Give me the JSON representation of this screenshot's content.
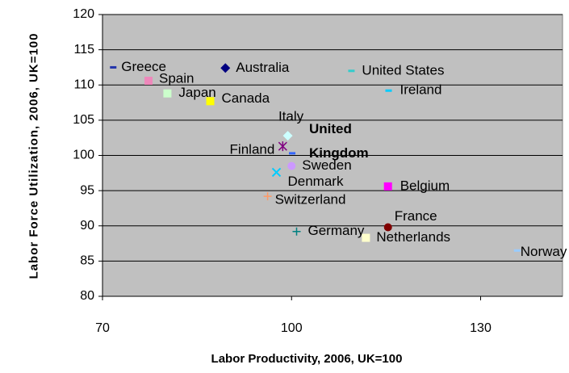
{
  "chart_data": {
    "type": "scatter",
    "x_label": "Labor Productivity, 2006, UK=100",
    "y_label": "Labor Force Utilization, 2006, UK=100",
    "xlim": [
      70,
      143
    ],
    "ylim": [
      80,
      120
    ],
    "xticks": [
      70,
      100,
      130
    ],
    "yticks": [
      80,
      85,
      90,
      95,
      100,
      105,
      110,
      115,
      120
    ],
    "grid": true,
    "points": [
      {
        "label": "Greece",
        "x": 71.7,
        "y": 112.5,
        "color": "#2233aa",
        "marker": "dash"
      },
      {
        "label": "Spain",
        "x": 77.3,
        "y": 110.6,
        "color": "#ee88bb",
        "marker": "square"
      },
      {
        "label": "Japan",
        "x": 80.3,
        "y": 108.8,
        "color": "#ccffcc",
        "marker": "square"
      },
      {
        "label": "Canada",
        "x": 87.1,
        "y": 107.7,
        "color": "#ffff00",
        "marker": "square"
      },
      {
        "label": "Australia",
        "x": 89.5,
        "y": 112.4,
        "color": "#000080",
        "marker": "diamond"
      },
      {
        "label": "United States",
        "x": 109.5,
        "y": 112.0,
        "color": "#33cccc",
        "marker": "dash"
      },
      {
        "label": "Ireland",
        "x": 115.4,
        "y": 109.2,
        "color": "#00ccff",
        "marker": "dash"
      },
      {
        "label": "Italy",
        "x": 99.4,
        "y": 102.8,
        "color": "#ccffff",
        "marker": "diamond"
      },
      {
        "label": "Finland",
        "x": 98.6,
        "y": 101.3,
        "color": "#800080",
        "marker": "star"
      },
      {
        "label": "United Kingdom",
        "x": 100.1,
        "y": 100.3,
        "color": "#3366ff",
        "marker": "dash"
      },
      {
        "label": "Sweden",
        "x": 100.0,
        "y": 98.5,
        "color": "#cc99ff",
        "marker": "circle"
      },
      {
        "label": "Denmark",
        "x": 97.6,
        "y": 97.6,
        "color": "#00ccff",
        "marker": "x"
      },
      {
        "label": "Belgium",
        "x": 115.3,
        "y": 95.6,
        "color": "#ff00ff",
        "marker": "square"
      },
      {
        "label": "Switzerland",
        "x": 96.2,
        "y": 94.2,
        "color": "#ff9966",
        "marker": "plus"
      },
      {
        "label": "Germany",
        "x": 100.8,
        "y": 89.2,
        "color": "#008080",
        "marker": "plus"
      },
      {
        "label": "France",
        "x": 115.3,
        "y": 89.8,
        "color": "#800000",
        "marker": "circle"
      },
      {
        "label": "Netherlands",
        "x": 111.8,
        "y": 88.3,
        "color": "#ffffcc",
        "marker": "square"
      },
      {
        "label": "Norway",
        "x": 135.8,
        "y": 86.5,
        "color": "#99ccff",
        "marker": "dash"
      }
    ]
  }
}
